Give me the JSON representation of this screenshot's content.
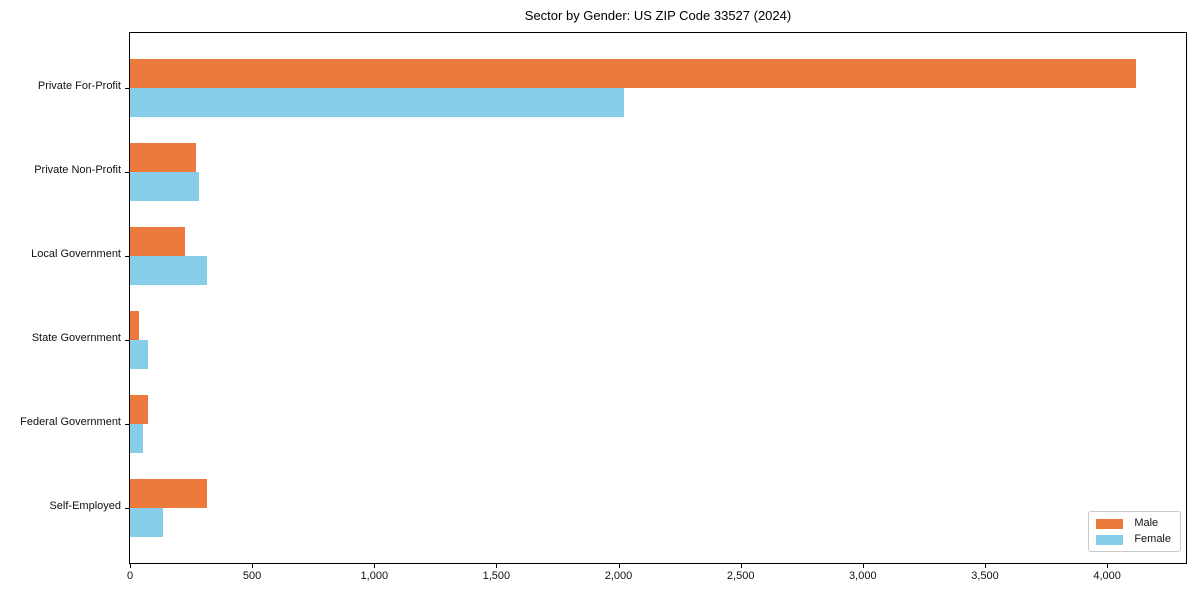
{
  "chart_data": {
    "type": "bar",
    "orientation": "horizontal",
    "title": "Sector by Gender: US ZIP Code 33527 (2024)",
    "categories": [
      "Private For-Profit",
      "Private Non-Profit",
      "Local Government",
      "State Government",
      "Federal Government",
      "Self-Employed"
    ],
    "series": [
      {
        "name": "Male",
        "color": "#ec7a3c",
        "values": [
          4117,
          272,
          225,
          37,
          72,
          316
        ]
      },
      {
        "name": "Female",
        "color": "#87cde8",
        "values": [
          2022,
          284,
          314,
          75,
          52,
          134
        ]
      }
    ],
    "xlabel": "",
    "ylabel": "",
    "xlim": [
      0,
      4323
    ],
    "xticks": [
      0,
      500,
      1000,
      1500,
      2000,
      2500,
      3000,
      3500,
      4000
    ],
    "xtick_labels": [
      "0",
      "500",
      "1,000",
      "1,500",
      "2,000",
      "2,500",
      "3,000",
      "3,500",
      "4,000"
    ],
    "grid": false,
    "legend_position": "lower right"
  }
}
